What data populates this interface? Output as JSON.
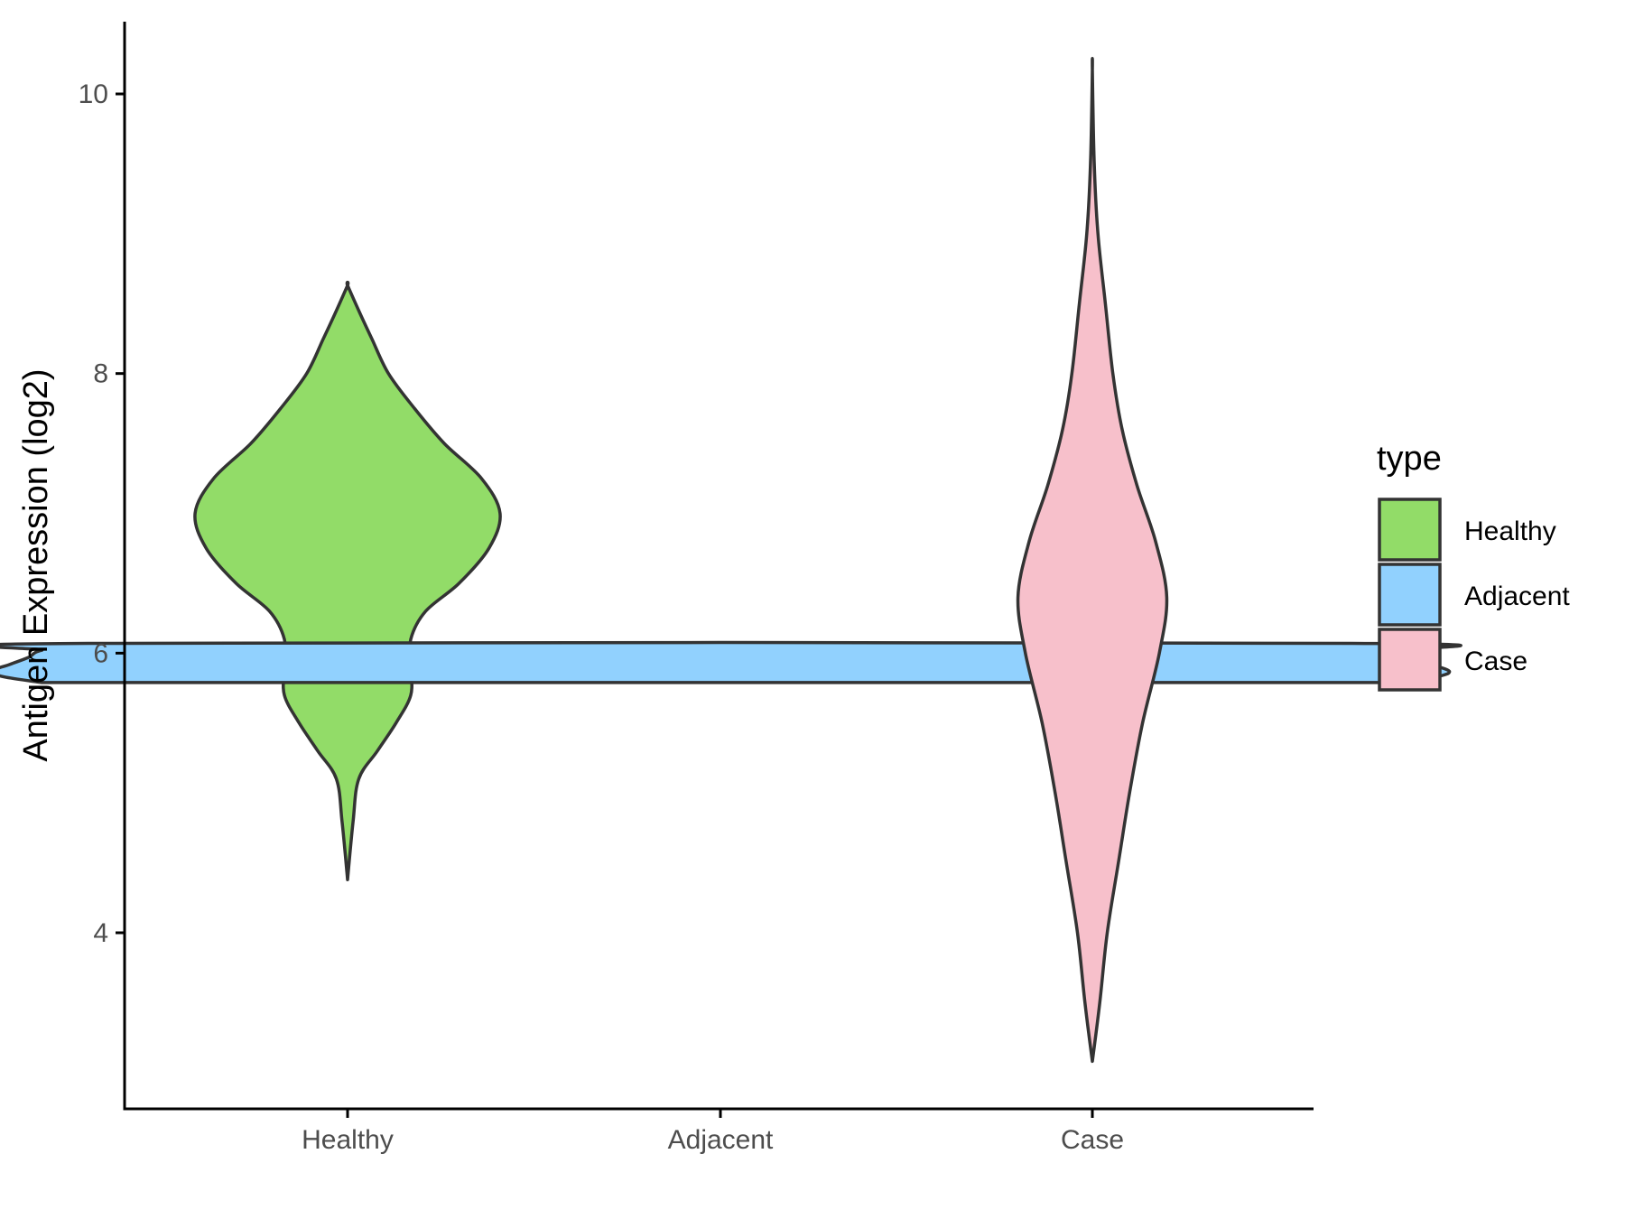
{
  "chart_data": {
    "type": "violin",
    "title": "",
    "xlabel": "",
    "ylabel": "Antigen Expression (log2)",
    "categories": [
      "Healthy",
      "Adjacent",
      "Case"
    ],
    "ylim": [
      2.5,
      10.5
    ],
    "yticks": [
      4,
      6,
      8,
      10
    ],
    "yticklabels": [
      "4",
      "6",
      "8",
      "10"
    ],
    "grid": false,
    "legend": {
      "title": "type",
      "position": "right",
      "entries": [
        "Healthy",
        "Adjacent",
        "Case"
      ]
    },
    "colors": {
      "Healthy": "#92dc68",
      "Adjacent": "#91d1fe",
      "Case": "#f7c0cb",
      "outline": "#333333"
    },
    "violins": [
      {
        "name": "Healthy",
        "min": 4.38,
        "max": 8.63,
        "profile": [
          [
            4.38,
            0.0
          ],
          [
            4.8,
            0.03
          ],
          [
            5.1,
            0.06
          ],
          [
            5.3,
            0.16
          ],
          [
            5.5,
            0.26
          ],
          [
            5.7,
            0.34
          ],
          [
            5.9,
            0.34
          ],
          [
            6.1,
            0.34
          ],
          [
            6.3,
            0.42
          ],
          [
            6.5,
            0.6
          ],
          [
            6.75,
            0.76
          ],
          [
            7.0,
            0.82
          ],
          [
            7.25,
            0.72
          ],
          [
            7.5,
            0.52
          ],
          [
            7.75,
            0.36
          ],
          [
            8.0,
            0.22
          ],
          [
            8.25,
            0.13
          ],
          [
            8.45,
            0.06
          ],
          [
            8.63,
            0.0
          ]
        ]
      },
      {
        "name": "Adjacent",
        "min": 5.79,
        "max": 6.07,
        "profile": [
          [
            5.79,
            3.65
          ],
          [
            5.83,
            3.85
          ],
          [
            5.87,
            3.92
          ],
          [
            5.92,
            3.82
          ],
          [
            5.97,
            3.72
          ],
          [
            6.02,
            3.65
          ],
          [
            6.07,
            3.4
          ]
        ]
      },
      {
        "name": "Case",
        "min": 3.08,
        "max": 10.17,
        "profile": [
          [
            3.08,
            0.0
          ],
          [
            3.5,
            0.04
          ],
          [
            4.0,
            0.08
          ],
          [
            4.5,
            0.14
          ],
          [
            5.0,
            0.2
          ],
          [
            5.5,
            0.27
          ],
          [
            6.0,
            0.36
          ],
          [
            6.4,
            0.4
          ],
          [
            6.8,
            0.34
          ],
          [
            7.2,
            0.24
          ],
          [
            7.6,
            0.16
          ],
          [
            8.0,
            0.11
          ],
          [
            8.5,
            0.07
          ],
          [
            9.0,
            0.03
          ],
          [
            9.5,
            0.01
          ],
          [
            10.17,
            0.0
          ]
        ]
      }
    ]
  }
}
